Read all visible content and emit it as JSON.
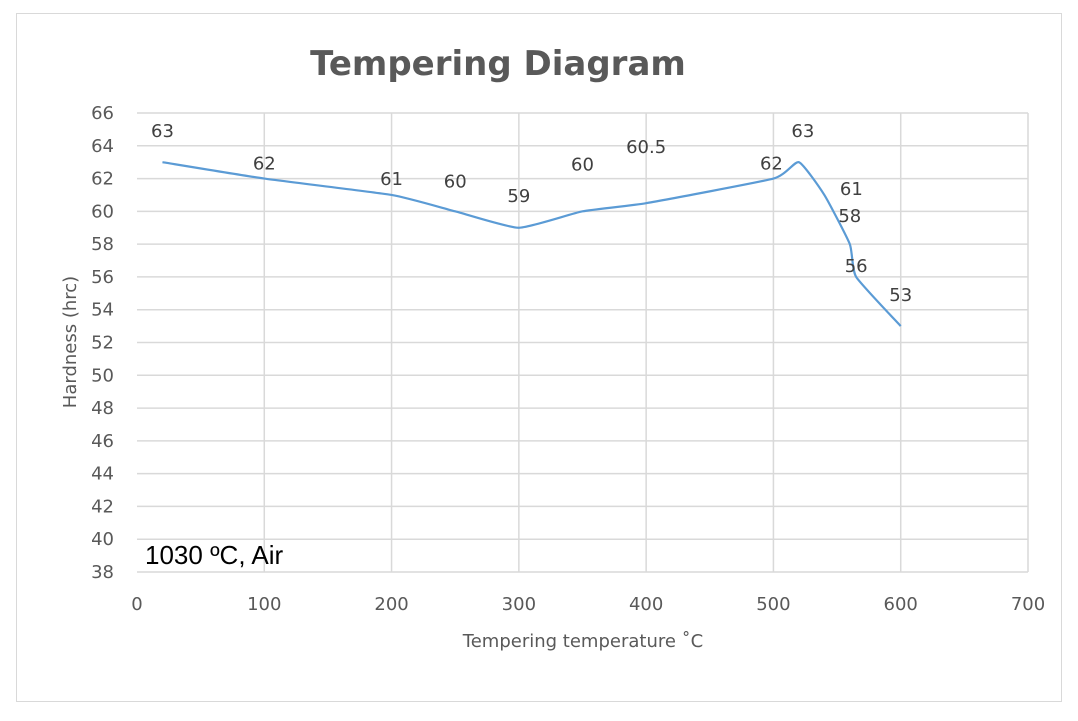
{
  "chart_data": {
    "type": "line",
    "title": "Tempering Diagram",
    "xlabel": "Tempering temperature ˚C",
    "ylabel": "Hardness (hrc)",
    "xlim": [
      0,
      700
    ],
    "ylim": [
      38,
      66
    ],
    "x_ticks": [
      0,
      100,
      200,
      300,
      400,
      500,
      600,
      700
    ],
    "y_ticks": [
      38,
      40,
      42,
      44,
      46,
      48,
      50,
      52,
      54,
      56,
      58,
      60,
      62,
      64,
      66
    ],
    "grid": true,
    "annotation": "1030 ºC, Air",
    "series": [
      {
        "name": "Hardness",
        "color": "#5b9bd5",
        "x": [
          20,
          100,
          200,
          250,
          300,
          350,
          400,
          500,
          520,
          540,
          560,
          565,
          600
        ],
        "y": [
          63,
          62,
          61,
          60,
          59,
          60,
          60.5,
          62,
          63,
          61,
          58,
          56,
          53
        ],
        "labels": [
          "63",
          "62",
          "61",
          "60",
          "59",
          "60",
          "60.5",
          "62",
          "63",
          "61",
          "58",
          "56",
          "53"
        ]
      }
    ]
  }
}
